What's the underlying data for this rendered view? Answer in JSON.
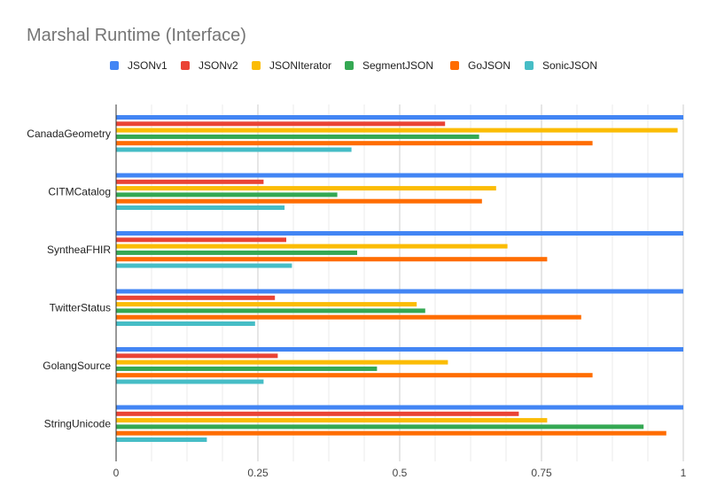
{
  "chart_data": {
    "type": "bar",
    "orientation": "horizontal",
    "title": "Marshal Runtime (Interface)",
    "xlabel": "",
    "ylabel": "",
    "xlim": [
      0,
      1
    ],
    "x_ticks": [
      "0",
      "0.25",
      "0.5",
      "0.75",
      "1"
    ],
    "grid": true,
    "legend_position": "top",
    "categories": [
      "CanadaGeometry",
      "CITMCatalog",
      "SyntheaFHIR",
      "TwitterStatus",
      "GolangSource",
      "StringUnicode"
    ],
    "series": [
      {
        "name": "JSONv1",
        "color": "#4285F4",
        "values": [
          1.0,
          1.0,
          1.0,
          1.0,
          1.0,
          1.0
        ]
      },
      {
        "name": "JSONv2",
        "color": "#EA4335",
        "values": [
          0.58,
          0.26,
          0.3,
          0.28,
          0.285,
          0.71
        ]
      },
      {
        "name": "JSONIterator",
        "color": "#FBBC04",
        "values": [
          0.99,
          0.67,
          0.69,
          0.53,
          0.585,
          0.76
        ]
      },
      {
        "name": "SegmentJSON",
        "color": "#34A853",
        "values": [
          0.64,
          0.39,
          0.425,
          0.545,
          0.46,
          0.93
        ]
      },
      {
        "name": "GoJSON",
        "color": "#FF6D01",
        "values": [
          0.84,
          0.645,
          0.76,
          0.82,
          0.84,
          0.97
        ]
      },
      {
        "name": "SonicJSON",
        "color": "#46BDC6",
        "values": [
          0.415,
          0.297,
          0.31,
          0.245,
          0.26,
          0.16
        ]
      }
    ]
  }
}
